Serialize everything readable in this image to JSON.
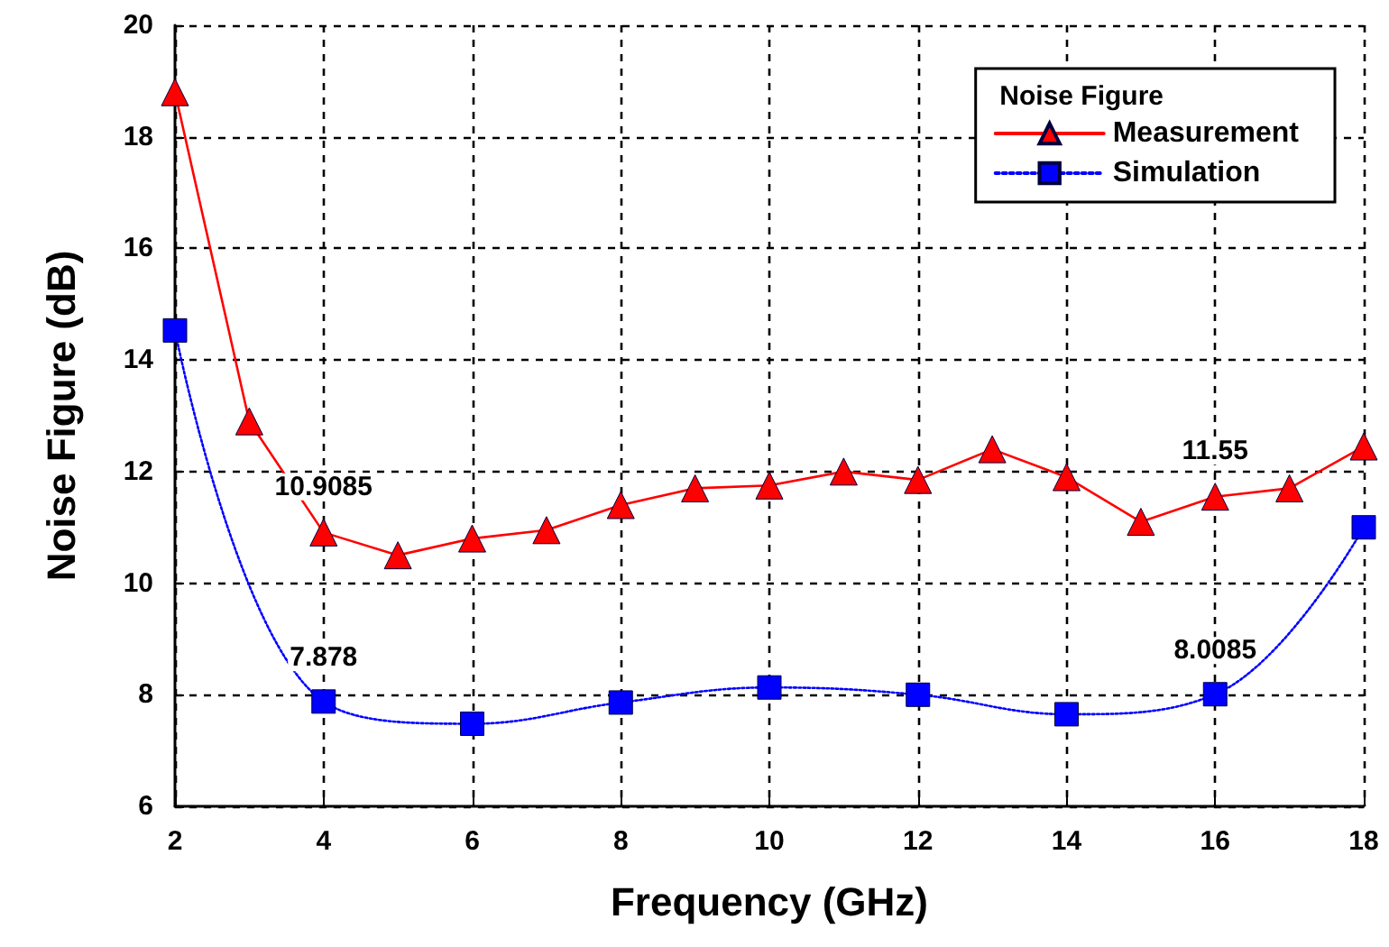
{
  "chart_data": {
    "type": "line",
    "xlabel": "Frequency (GHz)",
    "ylabel": "Noise Figure (dB)",
    "legend_title": "Noise Figure",
    "legend": "top right",
    "grid": true,
    "xlim": [
      2,
      18
    ],
    "xticks": [
      2,
      4,
      6,
      8,
      10,
      12,
      14,
      16,
      18
    ],
    "ylim": [
      6,
      20
    ],
    "yticks": [
      6,
      8,
      10,
      12,
      14,
      16,
      18,
      20
    ],
    "series": [
      {
        "name": "Measurement",
        "color": "#ff0000",
        "marker": "triangle",
        "line_style": "solid",
        "x": [
          2,
          3,
          4,
          5,
          6,
          7,
          8,
          9,
          10,
          11,
          12,
          13,
          14,
          15,
          16,
          17,
          18
        ],
        "values": [
          18.8,
          12.9,
          10.9085,
          10.5,
          10.8,
          10.95,
          11.4,
          11.7,
          11.75,
          12.0,
          11.85,
          12.4,
          11.9,
          11.1,
          11.55,
          11.7,
          12.45
        ],
        "value_labels": [
          null,
          null,
          "10.9085",
          null,
          null,
          null,
          null,
          null,
          null,
          null,
          null,
          null,
          null,
          null,
          "11.55",
          null,
          null
        ]
      },
      {
        "name": "Simulation",
        "color": "#0000ff",
        "marker": "square",
        "line_style": "dotted",
        "x": [
          2,
          4,
          6,
          8,
          10,
          12,
          14,
          16,
          18
        ],
        "values": [
          14.53,
          7.878,
          7.48,
          7.86,
          8.13,
          8.0,
          7.65,
          8.0085,
          11.0
        ],
        "value_labels": [
          null,
          "7.878",
          null,
          null,
          null,
          null,
          null,
          "8.0085",
          null
        ]
      }
    ]
  }
}
